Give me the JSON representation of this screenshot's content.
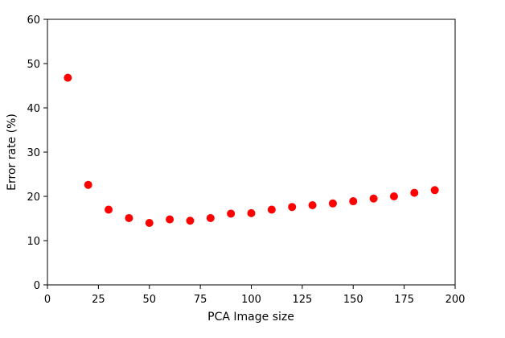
{
  "chart_data": {
    "type": "scatter",
    "title": "",
    "xlabel": "PCA Image size",
    "ylabel": "Error rate (%)",
    "xlim": [
      0,
      200
    ],
    "ylim": [
      0,
      60
    ],
    "x_ticks": [
      "0",
      "25",
      "50",
      "75",
      "100",
      "125",
      "150",
      "175",
      "200"
    ],
    "y_ticks": [
      "0",
      "10",
      "20",
      "30",
      "40",
      "50",
      "60"
    ],
    "grid": false,
    "marker_color": "#ff0000",
    "points": [
      {
        "x": 10,
        "y": 46.8
      },
      {
        "x": 20,
        "y": 22.6
      },
      {
        "x": 30,
        "y": 17.0
      },
      {
        "x": 40,
        "y": 15.1
      },
      {
        "x": 50,
        "y": 14.0
      },
      {
        "x": 60,
        "y": 14.8
      },
      {
        "x": 70,
        "y": 14.5
      },
      {
        "x": 80,
        "y": 15.1
      },
      {
        "x": 90,
        "y": 16.1
      },
      {
        "x": 100,
        "y": 16.2
      },
      {
        "x": 110,
        "y": 17.0
      },
      {
        "x": 120,
        "y": 17.6
      },
      {
        "x": 130,
        "y": 18.0
      },
      {
        "x": 140,
        "y": 18.4
      },
      {
        "x": 150,
        "y": 18.9
      },
      {
        "x": 160,
        "y": 19.5
      },
      {
        "x": 170,
        "y": 20.0
      },
      {
        "x": 180,
        "y": 20.8
      },
      {
        "x": 190,
        "y": 21.4
      }
    ]
  }
}
